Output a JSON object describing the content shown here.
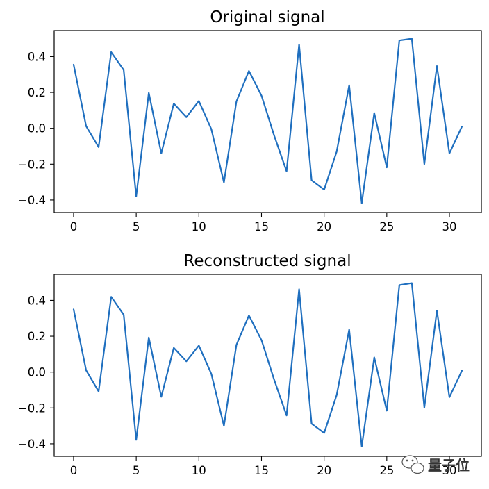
{
  "chart_data": [
    {
      "type": "line",
      "title": "Original signal",
      "xlabel": "",
      "ylabel": "",
      "xlim": [
        -1.55,
        32.55
      ],
      "ylim": [
        -0.47,
        0.545
      ],
      "xticks": [
        0,
        5,
        10,
        15,
        20,
        25,
        30
      ],
      "yticks": [
        -0.4,
        -0.2,
        0.0,
        0.2,
        0.4
      ],
      "ytick_labels": [
        "−0.4",
        "−0.2",
        "0.0",
        "0.2",
        "0.4"
      ],
      "grid": false,
      "series": [
        {
          "color": "#1f6fbf",
          "x": [
            0,
            1,
            2,
            3,
            4,
            5,
            6,
            7,
            8,
            9,
            10,
            11,
            12,
            13,
            14,
            15,
            16,
            17,
            18,
            19,
            20,
            21,
            22,
            23,
            24,
            25,
            26,
            27,
            28,
            29,
            30,
            31
          ],
          "y": [
            0.355,
            0.012,
            -0.105,
            0.425,
            0.325,
            -0.38,
            0.198,
            -0.14,
            0.138,
            0.062,
            0.152,
            -0.005,
            -0.302,
            0.15,
            0.32,
            0.182,
            -0.038,
            -0.24,
            0.467,
            -0.29,
            -0.342,
            -0.13,
            0.24,
            -0.418,
            0.085,
            -0.218,
            0.49,
            0.5,
            -0.2,
            0.347,
            -0.14,
            0.01
          ]
        }
      ]
    },
    {
      "type": "line",
      "title": "Reconstructed signal",
      "xlabel": "",
      "ylabel": "",
      "xlim": [
        -1.55,
        32.55
      ],
      "ylim": [
        -0.47,
        0.545
      ],
      "xticks": [
        0,
        5,
        10,
        15,
        20,
        25,
        30
      ],
      "yticks": [
        -0.4,
        -0.2,
        0.0,
        0.2,
        0.4
      ],
      "ytick_labels": [
        "−0.4",
        "−0.2",
        "0.0",
        "0.2",
        "0.4"
      ],
      "grid": false,
      "series": [
        {
          "color": "#1f6fbf",
          "x": [
            0,
            1,
            2,
            3,
            4,
            5,
            6,
            7,
            8,
            9,
            10,
            11,
            12,
            13,
            14,
            15,
            16,
            17,
            18,
            19,
            20,
            21,
            22,
            23,
            24,
            25,
            26,
            27,
            28,
            29,
            30,
            31
          ],
          "y": [
            0.35,
            0.01,
            -0.108,
            0.42,
            0.32,
            -0.378,
            0.193,
            -0.138,
            0.135,
            0.06,
            0.148,
            -0.01,
            -0.3,
            0.152,
            0.316,
            0.178,
            -0.04,
            -0.242,
            0.462,
            -0.288,
            -0.34,
            -0.128,
            0.237,
            -0.415,
            0.082,
            -0.215,
            0.485,
            0.496,
            -0.198,
            0.343,
            -0.14,
            0.008
          ]
        }
      ]
    }
  ],
  "watermark": {
    "text": "量子位",
    "icon": "wechat-bubble-icon"
  }
}
